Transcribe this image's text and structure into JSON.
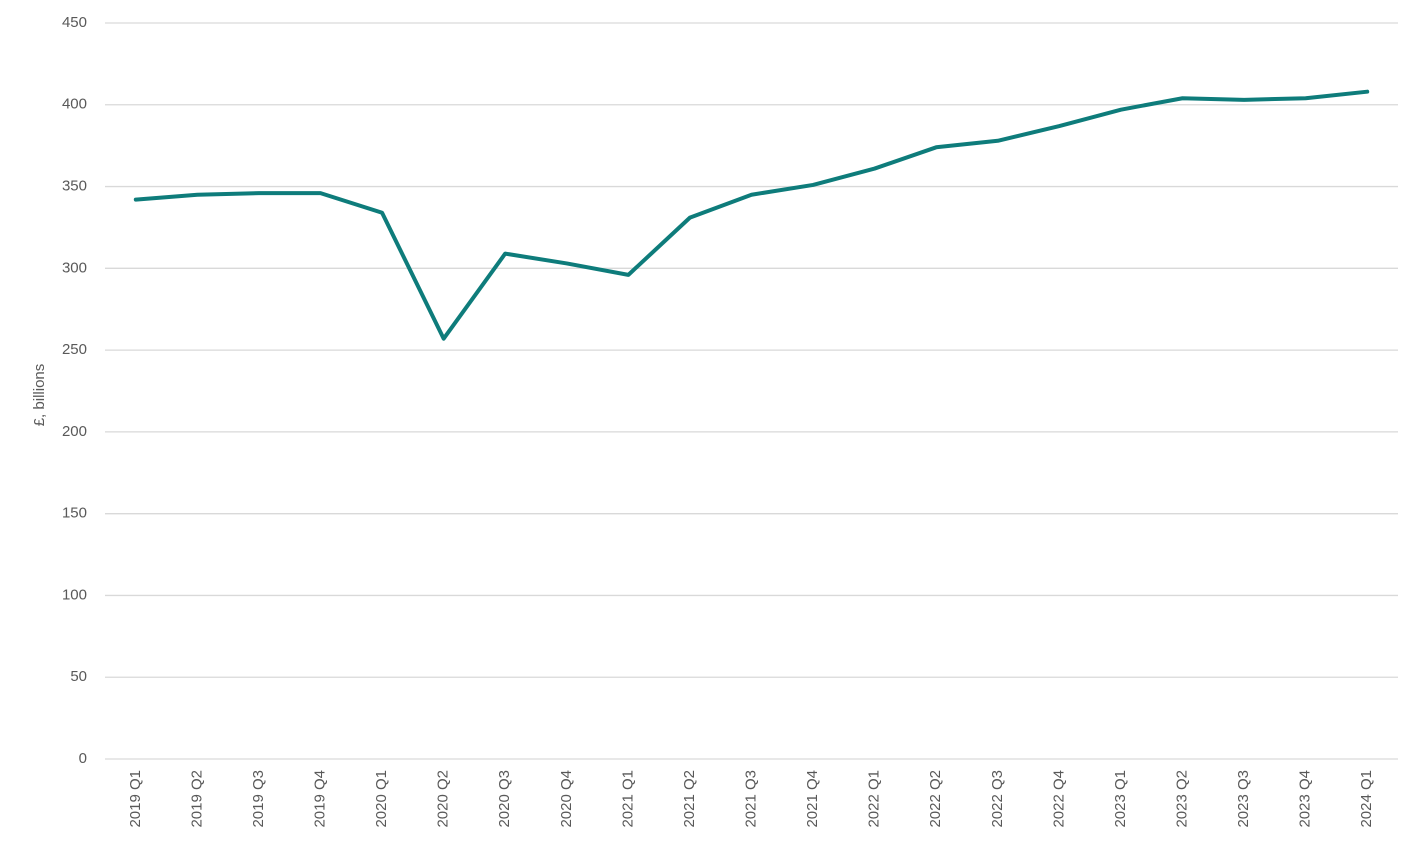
{
  "chart_data": {
    "type": "line",
    "y_label": "£, billions",
    "categories": [
      "2019 Q1",
      "2019 Q2",
      "2019 Q3",
      "2019 Q4",
      "2020 Q1",
      "2020 Q2",
      "2020 Q3",
      "2020 Q4",
      "2021 Q1",
      "2021 Q2",
      "2021 Q3",
      "2021 Q4",
      "2022 Q1",
      "2022 Q2",
      "2022 Q3",
      "2022 Q4",
      "2023 Q1",
      "2023 Q2",
      "2023 Q3",
      "2023 Q4",
      "2024 Q1"
    ],
    "values": [
      342,
      345,
      346,
      346,
      334,
      257,
      309,
      303,
      296,
      331,
      345,
      351,
      361,
      374,
      378,
      387,
      397,
      404,
      403,
      404,
      408
    ],
    "color": "#0e7c7b",
    "ylim": [
      0,
      450
    ],
    "yticks": [
      0,
      50,
      100,
      150,
      200,
      250,
      300,
      350,
      400,
      450
    ],
    "grid": true
  }
}
